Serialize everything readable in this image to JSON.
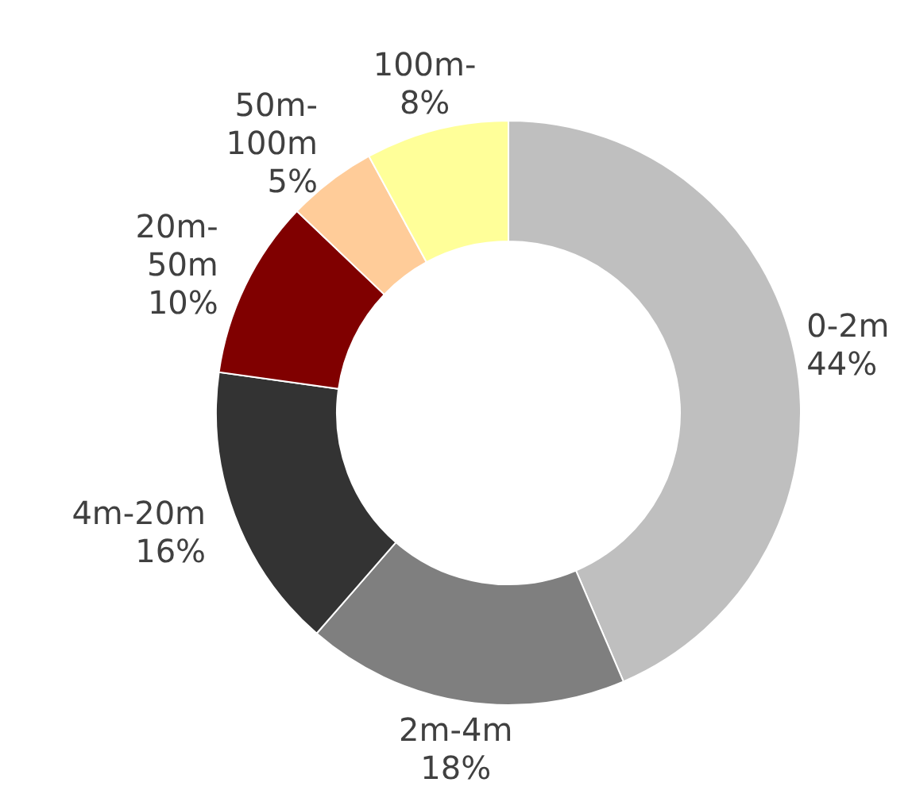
{
  "chart_data": {
    "type": "donut",
    "categories": [
      "0-2m",
      "2m-4m",
      "4m-20m",
      "20m-50m",
      "50m-100m",
      "100m-"
    ],
    "values": [
      44,
      18,
      16,
      10,
      5,
      8
    ],
    "colors": [
      "#bfbfbf",
      "#7f7f7f",
      "#333333",
      "#800000",
      "#ffcc99",
      "#ffff99"
    ],
    "value_labels": [
      "44%",
      "18%",
      "16%",
      "10%",
      "5%",
      "8%"
    ]
  }
}
